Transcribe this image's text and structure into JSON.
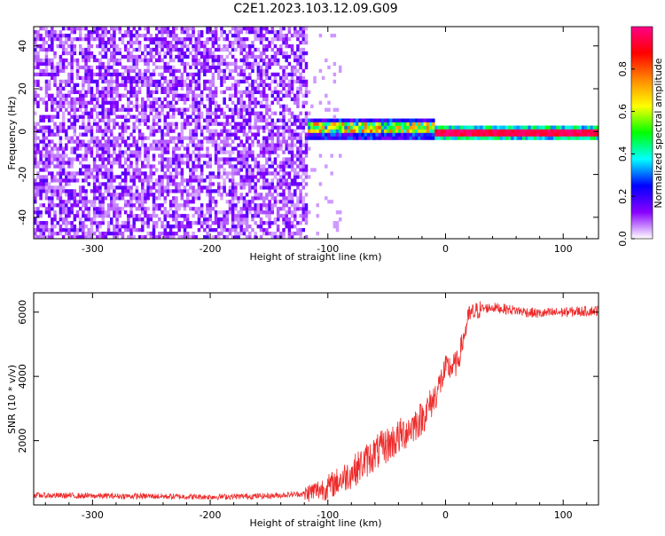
{
  "title": "C2E1.2023.103.12.09.G09",
  "chart_data": [
    {
      "type": "heatmap",
      "xlabel": "Height of straight line (km)",
      "ylabel": "Frequency (Hz)",
      "xlim": [
        -350,
        130
      ],
      "ylim": [
        -50,
        49
      ],
      "xticks": [
        -300,
        -200,
        -100,
        0,
        100
      ],
      "xtick_labels": [
        "-300",
        "-200",
        "-100",
        "0",
        "100"
      ],
      "yticks": [
        -40,
        -20,
        0,
        20,
        40
      ],
      "ytick_labels": [
        "-40",
        "-20",
        "0",
        "20",
        "40"
      ],
      "colorbar": {
        "label": "Normalized spectral amplitude",
        "range": [
          0,
          1
        ],
        "ticks": [
          0.0,
          0.2,
          0.4,
          0.6,
          0.8
        ],
        "tick_labels": [
          "0.0",
          "0.2",
          "0.4",
          "0.6",
          "0.8"
        ],
        "colormap": [
          "#ffffff",
          "#8800ff",
          "#0000ff",
          "#00ffff",
          "#00ff00",
          "#ffff00",
          "#ff8800",
          "#ff0000",
          "#ff0088"
        ]
      },
      "regions": [
        {
          "x_range": [
            -350,
            -118
          ],
          "freq_range": [
            -50,
            49
          ],
          "amplitude": "0.0–0.15",
          "description": "diffuse noise"
        },
        {
          "x_range": [
            -118,
            -10
          ],
          "center_freq": 1,
          "amplitude": "0.2–0.8",
          "description": "narrow signal band"
        },
        {
          "x_range": [
            -10,
            130
          ],
          "center_freq": 0,
          "amplitude": "0.9–1.0",
          "description": "strong carrier line"
        }
      ]
    },
    {
      "type": "line",
      "xlabel": "Height of straight line (km)",
      "ylabel": "SNR (10 * v/v)",
      "xlim": [
        -350,
        130
      ],
      "ylim": [
        0,
        6600
      ],
      "xticks": [
        -300,
        -200,
        -100,
        0,
        100
      ],
      "xtick_labels": [
        "-300",
        "-200",
        "-100",
        "0",
        "100"
      ],
      "yticks": [
        2000,
        4000,
        6000
      ],
      "ytick_labels": [
        "2000",
        "4000",
        "6000"
      ],
      "series": [
        {
          "color": "#ee2a2a",
          "x": [
            -350,
            -300,
            -250,
            -200,
            -150,
            -120,
            -100,
            -80,
            -60,
            -40,
            -20,
            -10,
            0,
            10,
            20,
            30,
            40,
            60,
            80,
            100,
            130
          ],
          "y": [
            300,
            280,
            270,
            250,
            280,
            350,
            550,
            1000,
            1600,
            2100,
            2700,
            3300,
            4200,
            4400,
            5900,
            6100,
            6150,
            6050,
            5950,
            6000,
            6050
          ]
        }
      ]
    }
  ]
}
